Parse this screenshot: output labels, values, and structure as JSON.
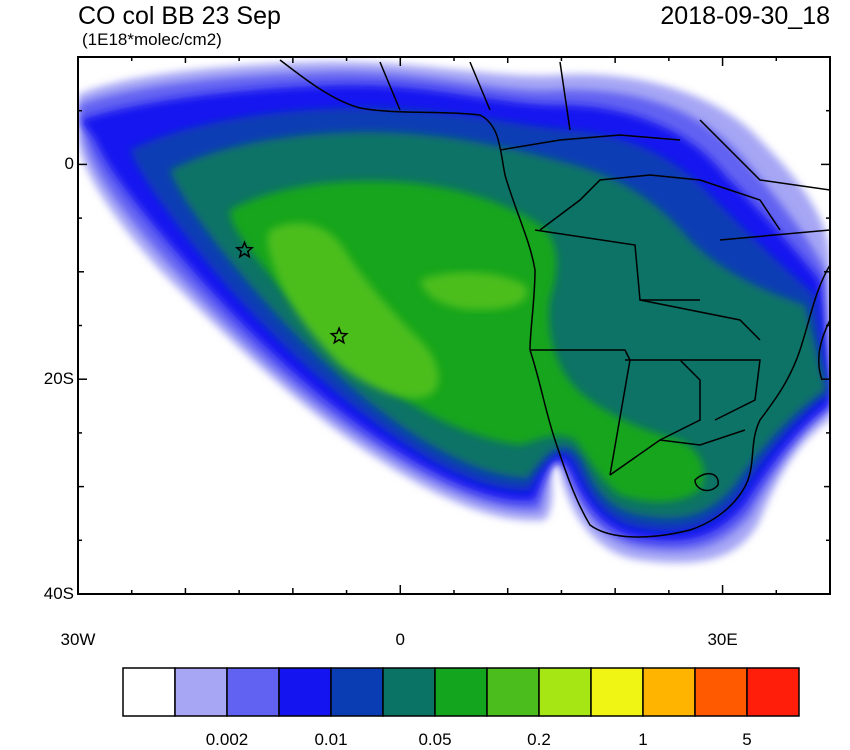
{
  "title": {
    "left": "CO col BB 23 Sep",
    "units": "(1E18*molec/cm2)",
    "right": "2018-09-30_18"
  },
  "axes": {
    "lat_ticks": [
      {
        "value": 0,
        "label": "0"
      },
      {
        "value": -20,
        "label": "20S"
      },
      {
        "value": -40,
        "label": "40S"
      }
    ],
    "lon_ticks": [
      {
        "value": -30,
        "label": "30W"
      },
      {
        "value": 0,
        "label": "0"
      },
      {
        "value": 30,
        "label": "30E"
      }
    ],
    "lon_range": [
      -30,
      40
    ],
    "lat_range": [
      -40,
      10
    ]
  },
  "markers": [
    {
      "name": "star-1",
      "lon": -14.5,
      "lat": -8
    },
    {
      "name": "star-2",
      "lon": -5.7,
      "lat": -16
    }
  ],
  "colorbar": {
    "colors": [
      "#ffffff",
      "#a6a6f5",
      "#6262f2",
      "#1414f0",
      "#0a3cb4",
      "#0a7366",
      "#14a51e",
      "#4bbe1e",
      "#a5e614",
      "#f0f514",
      "#ffb400",
      "#ff5a00",
      "#ff1e0a"
    ],
    "tick_labels": [
      "0.002",
      "0.01",
      "0.05",
      "0.2",
      "1",
      "5"
    ]
  }
}
